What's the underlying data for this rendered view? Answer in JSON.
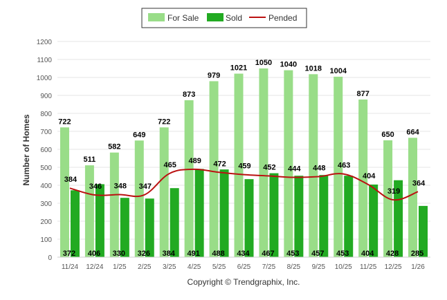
{
  "chart_data": {
    "type": "bar",
    "categories": [
      "11/24",
      "12/24",
      "1/25",
      "2/25",
      "3/25",
      "4/25",
      "5/25",
      "6/25",
      "7/25",
      "8/25",
      "9/25",
      "10/25",
      "11/25",
      "12/25",
      "1/26"
    ],
    "series": [
      {
        "name": "For Sale",
        "type": "bar",
        "color": "#99dd88",
        "values": [
          722,
          511,
          582,
          649,
          722,
          873,
          979,
          1021,
          1050,
          1040,
          1018,
          1004,
          877,
          650,
          664
        ]
      },
      {
        "name": "Sold",
        "type": "bar",
        "color": "#22aa22",
        "values": [
          372,
          406,
          330,
          326,
          384,
          491,
          488,
          434,
          467,
          453,
          457,
          453,
          404,
          428,
          285
        ]
      },
      {
        "name": "Pended",
        "type": "line",
        "color": "#bb1111",
        "values": [
          384,
          346,
          348,
          347,
          465,
          489,
          472,
          459,
          452,
          444,
          448,
          463,
          404,
          319,
          364
        ]
      }
    ],
    "ylabel": "Number of Homes",
    "xlabel": "",
    "ylim": [
      0,
      1200
    ],
    "yticks": [
      0,
      100,
      200,
      300,
      400,
      500,
      600,
      700,
      800,
      900,
      1000,
      1100,
      1200
    ],
    "grid": true,
    "legend_position": "top-center"
  },
  "footer": "Copyright © Trendgraphix, Inc."
}
